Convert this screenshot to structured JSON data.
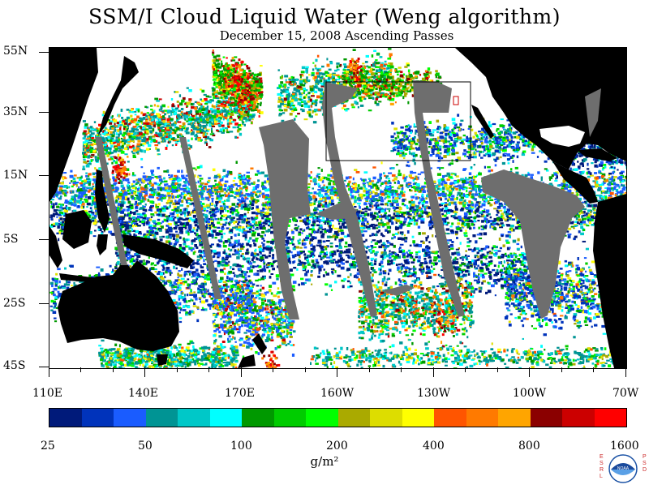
{
  "title": "SSM/I Cloud Liquid Water (Weng algorithm)",
  "subtitle": "December 15, 2008  Ascending Passes",
  "latitude_labels": [
    "55N",
    "35N",
    "15N",
    "5S",
    "25S",
    "45S"
  ],
  "longitude_labels": [
    "110E",
    "140E",
    "170E",
    "160W",
    "130W",
    "100W",
    "70W"
  ],
  "colorbar": {
    "units": "g/m²",
    "tick_labels": [
      "25",
      "50",
      "100",
      "200",
      "400",
      "800",
      "1600"
    ],
    "colors": [
      "#001a7a",
      "#0033bb",
      "#1a5cff",
      "#009494",
      "#00c8c8",
      "#00ffff",
      "#009900",
      "#00cc00",
      "#00ff00",
      "#aaaa00",
      "#dddd00",
      "#ffff00",
      "#ff5500",
      "#ff7a00",
      "#ffa500",
      "#8b0000",
      "#cc0000",
      "#ff0000"
    ]
  },
  "map_colors": {
    "land": "#000000",
    "no_data": "#6e6e6e",
    "ocean_clear": "#ffffff"
  },
  "logo": {
    "left_letters": "ESRL",
    "right_letters": "PSD",
    "seal_text": "NOAA"
  }
}
